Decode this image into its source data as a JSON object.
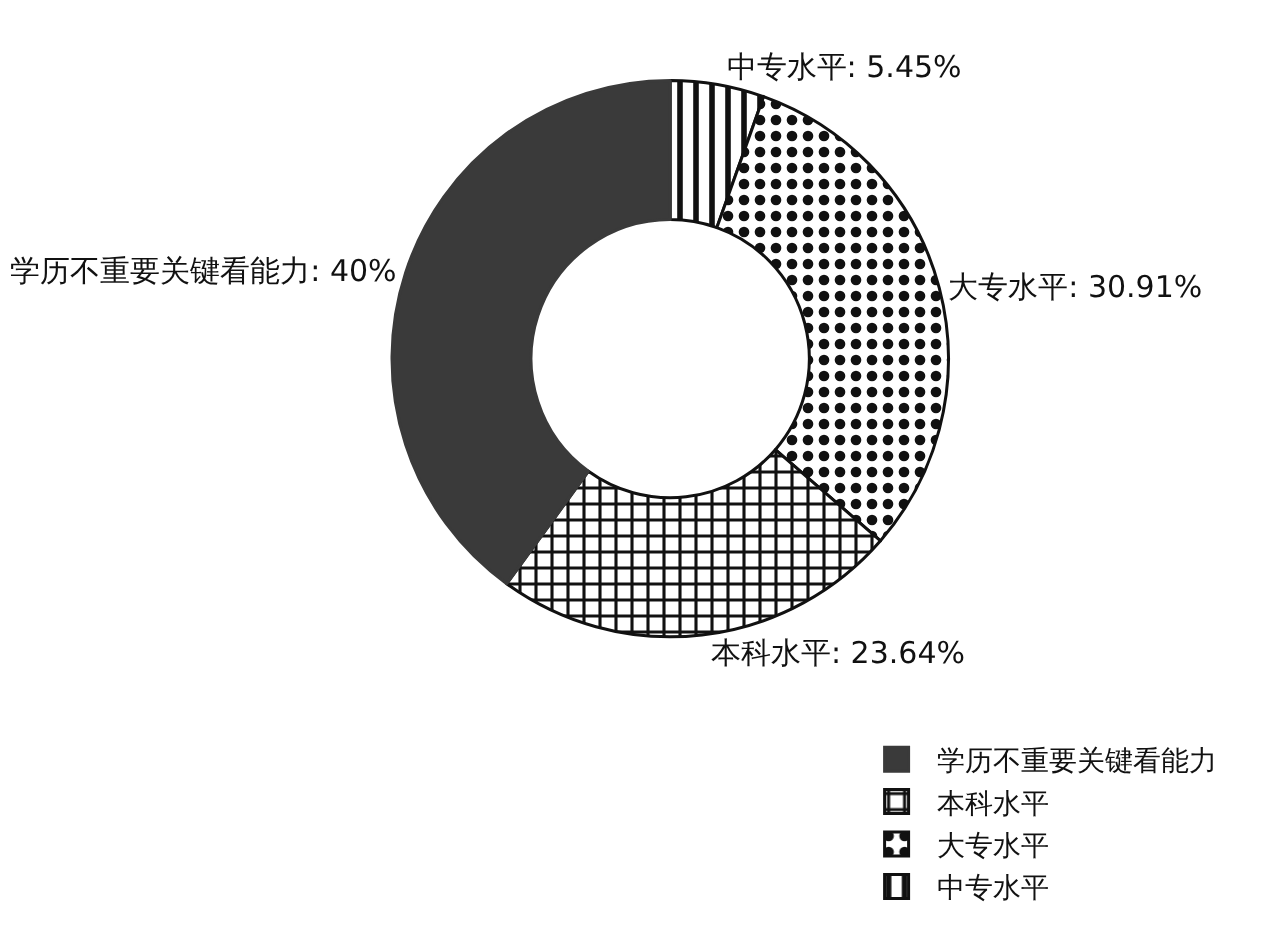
{
  "chart_data": {
    "type": "donut",
    "categories": [
      "中专水平",
      "大专水平",
      "本科水平",
      "学历不重要关键看能力"
    ],
    "values": [
      5.45,
      30.91,
      23.64,
      40
    ],
    "colors": [
      "#111111",
      "#111111",
      "#111111",
      "#3a3a3a"
    ],
    "value_labels": [
      "中专水平: 5.45%",
      "大专水平: 30.91%",
      "本科水平: 23.64%",
      "学历不重要关键看能力: 40%"
    ],
    "legend": "bottom right"
  }
}
